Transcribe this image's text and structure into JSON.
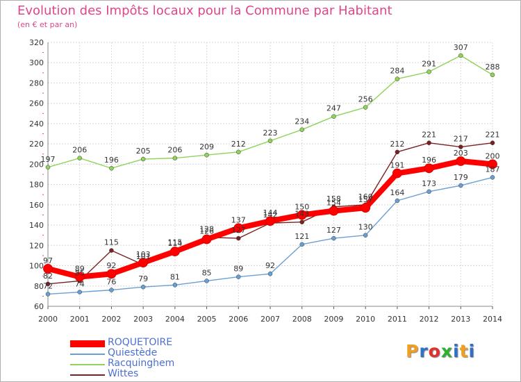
{
  "title": "Evolution des Impôts locaux pour la Commune par Habitant",
  "subtitle": "(en € et par an)",
  "logo": {
    "text": "Proxiti",
    "letter_colors": [
      "#f0a020",
      "#3070c8",
      "#e03030",
      "#30b030",
      "#3070c8",
      "#f0a020",
      "#3070c8"
    ]
  },
  "chart_data": {
    "type": "line",
    "x": [
      "2000",
      "2001",
      "2002",
      "2003",
      "2004",
      "2005",
      "2006",
      "2007",
      "2008",
      "2009",
      "2010",
      "2011",
      "2012",
      "2013",
      "2014"
    ],
    "ylim": [
      60,
      320
    ],
    "yticks": [
      60,
      80,
      100,
      120,
      140,
      160,
      180,
      200,
      220,
      240,
      260,
      280,
      300,
      320
    ],
    "grid": true,
    "legend_position": "bottom-left",
    "series": [
      {
        "name": "ROQUETOIRE",
        "color": "#ff0000",
        "values": [
          97,
          89,
          92,
          103,
          114,
          126,
          137,
          144,
          150,
          154,
          157,
          191,
          196,
          203,
          200
        ]
      },
      {
        "name": "Quiestède",
        "color": "#6a9fd4",
        "values": [
          72,
          74,
          76,
          79,
          81,
          85,
          89,
          92,
          121,
          127,
          130,
          164,
          173,
          179,
          187
        ]
      },
      {
        "name": "Racquinghem",
        "color": "#8fd35a",
        "values": [
          197,
          206,
          196,
          205,
          206,
          209,
          212,
          223,
          234,
          247,
          256,
          284,
          291,
          307,
          288
        ]
      },
      {
        "name": "Wittes",
        "color": "#7a2020",
        "values": [
          82,
          85,
          115,
          101,
          115,
          128,
          127,
          142,
          143,
          158,
          160,
          212,
          221,
          217,
          221
        ]
      }
    ]
  }
}
